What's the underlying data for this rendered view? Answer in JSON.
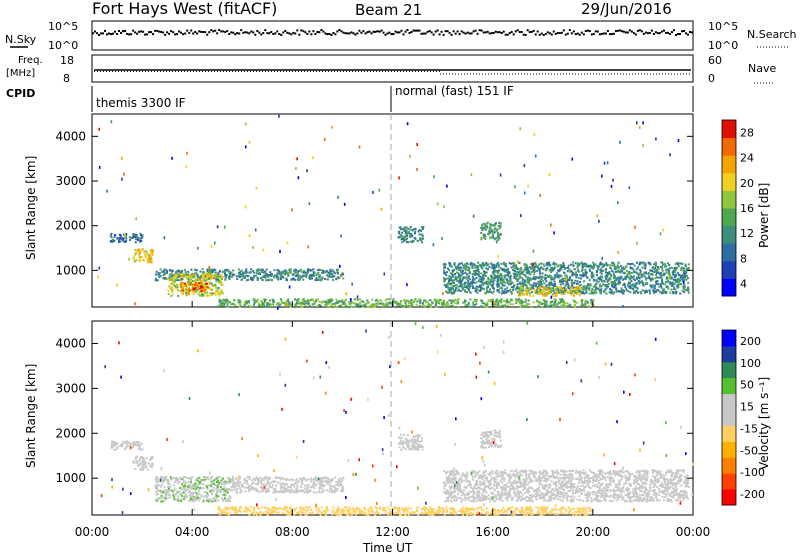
{
  "header": {
    "station": "Fort Hays West (fitACF)",
    "beam": "Beam 21",
    "date": "29/Jun/2016"
  },
  "panels": {
    "nsky": {
      "label": "N.Sky",
      "ticks": [
        "10^5",
        "10^0"
      ],
      "right_label": "N.Search",
      "right_ticks": [
        "10^5",
        "10^0"
      ]
    },
    "freq": {
      "label_top": "Freq.",
      "label_bottom": "[MHz]",
      "ticks": [
        "18",
        "8"
      ],
      "right_label": "Nave",
      "right_ticks": [
        "60",
        "0"
      ]
    },
    "cpid": {
      "label": "CPID",
      "modes": [
        "themis 3300 IF",
        "normal (fast) 151 IF"
      ]
    }
  },
  "chart_data": [
    {
      "type": "heatmap",
      "title": "Power",
      "ylabel": "Slant Range [km]",
      "xlabel": "",
      "ylim": [
        180,
        4500
      ],
      "yticks": [
        "1000",
        "2000",
        "3000",
        "4000"
      ],
      "colorbar": {
        "label": "Power [dB]",
        "ticks": [
          "28",
          "24",
          "20",
          "16",
          "12",
          "8",
          "4"
        ],
        "range": [
          0,
          30
        ],
        "colors": [
          "#0000ff",
          "#1f3fb4",
          "#2e6ea0",
          "#3e8e7e",
          "#4ea650",
          "#8cc83c",
          "#f0d020",
          "#f5a300",
          "#f06a00",
          "#e01000"
        ]
      },
      "features": [
        {
          "t": [
            0.7,
            2.0
          ],
          "range": [
            1650,
            1850
          ],
          "value": 8
        },
        {
          "t": [
            1.6,
            2.4
          ],
          "range": [
            1200,
            1500
          ],
          "value": 20
        },
        {
          "t": [
            2.5,
            10.0
          ],
          "range": [
            800,
            1050
          ],
          "value": 10
        },
        {
          "t": [
            3.0,
            5.2
          ],
          "range": [
            450,
            950
          ],
          "value": 18
        },
        {
          "t": [
            3.5,
            4.6
          ],
          "range": [
            550,
            750
          ],
          "value": 26
        },
        {
          "t": [
            14.0,
            23.8
          ],
          "range": [
            500,
            1200
          ],
          "value": 10
        },
        {
          "t": [
            17.0,
            19.5
          ],
          "range": [
            450,
            650
          ],
          "value": 20
        },
        {
          "t": [
            5.0,
            20.0
          ],
          "range": [
            200,
            380
          ],
          "value": 14
        },
        {
          "t": [
            12.2,
            13.2
          ],
          "range": [
            1650,
            2000
          ],
          "value": 10
        },
        {
          "t": [
            15.5,
            16.3
          ],
          "range": [
            1700,
            2100
          ],
          "value": 12
        }
      ]
    },
    {
      "type": "heatmap",
      "title": "Velocity",
      "ylabel": "Slant Range [km]",
      "xlabel": "Time UT",
      "ylim": [
        180,
        4500
      ],
      "yticks": [
        "1000",
        "2000",
        "3000",
        "4000"
      ],
      "xticks": [
        "00:00",
        "04:00",
        "08:00",
        "12:00",
        "16:00",
        "20:00",
        "00:00"
      ],
      "colorbar": {
        "label": "Velocity [m s⁻¹]",
        "ticks": [
          "200",
          "100",
          "50",
          "15",
          "-15",
          "-50",
          "-100",
          "-200"
        ],
        "range": [
          -250,
          250
        ],
        "colors": [
          "#ff0000",
          "#ff4000",
          "#ff8000",
          "#ffb000",
          "#ffd060",
          "#c8c8c8",
          "#c8c8c8",
          "#55c030",
          "#2e8b57",
          "#1e3ca0",
          "#0000ff"
        ]
      },
      "features": [
        {
          "t": [
            0.7,
            2.0
          ],
          "range": [
            1650,
            1850
          ],
          "value": 0
        },
        {
          "t": [
            1.6,
            2.4
          ],
          "range": [
            1200,
            1500
          ],
          "value": 0
        },
        {
          "t": [
            2.5,
            5.5
          ],
          "range": [
            500,
            1050
          ],
          "value": 60
        },
        {
          "t": [
            5.5,
            10.0
          ],
          "range": [
            700,
            1050
          ],
          "value": 0
        },
        {
          "t": [
            14.0,
            23.8
          ],
          "range": [
            500,
            1200
          ],
          "value": 0
        },
        {
          "t": [
            5.0,
            20.0
          ],
          "range": [
            200,
            380
          ],
          "value": -40
        },
        {
          "t": [
            12.2,
            13.2
          ],
          "range": [
            1650,
            2000
          ],
          "value": 0
        },
        {
          "t": [
            15.5,
            16.3
          ],
          "range": [
            1700,
            2100
          ],
          "value": 0
        }
      ]
    }
  ]
}
